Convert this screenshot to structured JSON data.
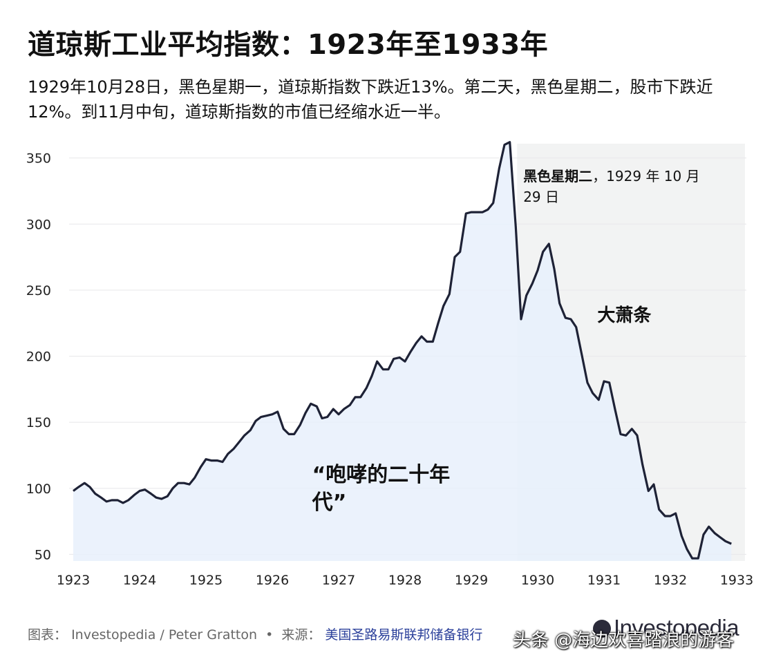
{
  "title": "道琼斯工业平均指数：1923年至1933年",
  "subtitle": "1929年10月28日，黑色星期一，道琼斯指数下跌近13%。第二天，黑色星期二，股市下跌近12%。到11月中旬，道琼斯指数的市值已经缩水近一半。",
  "footer": {
    "chart_label": "图表：",
    "chart_author": "Investopedia / Peter Gratton",
    "bullet": "•",
    "source_label": "来源：",
    "source_name": "美国圣路易斯联邦储备银行"
  },
  "brand": "Investopedia",
  "watermark": "头条 @海边欢喜踏浪的游客",
  "chart_data": {
    "type": "area",
    "title": "道琼斯工业平均指数：1923年至1933年",
    "xlabel": "",
    "ylabel": "",
    "xlim": [
      1923,
      1933
    ],
    "ylim": [
      45,
      365
    ],
    "x_ticks": [
      "1923",
      "1924",
      "1925",
      "1926",
      "1927",
      "1928",
      "1929",
      "1930",
      "1931",
      "1932",
      "1933"
    ],
    "y_ticks": [
      50,
      100,
      150,
      200,
      250,
      300,
      350
    ],
    "grid": true,
    "line_color": "#1e2236",
    "fill_color": "#e8f0fb",
    "shade_color": "#f2f3f3",
    "shaded_region": [
      1929.69,
      1932.0
    ],
    "annotations": [
      {
        "bold": "黑色星期二",
        "text": "，1929 年 10 月",
        "text2": "29 日",
        "x": 1929.7,
        "y": 340
      },
      {
        "text": "大萧条",
        "x": 1930.9,
        "y": 244
      },
      {
        "text": "“咆哮的二十年",
        "text2": "代”",
        "x": 1926.6,
        "y": 103
      }
    ],
    "series": [
      {
        "name": "道琼斯工业平均指数",
        "x": [
          1923.0,
          1923.08,
          1923.17,
          1923.25,
          1923.33,
          1923.42,
          1923.5,
          1923.58,
          1923.67,
          1923.75,
          1923.83,
          1923.92,
          1924.0,
          1924.08,
          1924.17,
          1924.25,
          1924.33,
          1924.42,
          1924.5,
          1924.58,
          1924.67,
          1924.75,
          1924.83,
          1924.92,
          1925.0,
          1925.08,
          1925.17,
          1925.25,
          1925.33,
          1925.42,
          1925.5,
          1925.58,
          1925.67,
          1925.75,
          1925.83,
          1925.92,
          1926.0,
          1926.08,
          1926.17,
          1926.25,
          1926.33,
          1926.42,
          1926.5,
          1926.58,
          1926.67,
          1926.75,
          1926.83,
          1926.92,
          1927.0,
          1927.08,
          1927.17,
          1927.25,
          1927.33,
          1927.42,
          1927.5,
          1927.58,
          1927.67,
          1927.75,
          1927.83,
          1927.92,
          1928.0,
          1928.08,
          1928.17,
          1928.25,
          1928.33,
          1928.42,
          1928.5,
          1928.58,
          1928.67,
          1928.75,
          1928.83,
          1928.92,
          1929.0,
          1929.08,
          1929.17,
          1929.25,
          1929.33,
          1929.42,
          1929.5,
          1929.58,
          1929.67,
          1929.75,
          1929.83,
          1929.92,
          1930.0,
          1930.08,
          1930.17,
          1930.25,
          1930.33,
          1930.42,
          1930.5,
          1930.58,
          1930.67,
          1930.75,
          1930.83,
          1930.92,
          1931.0,
          1931.08,
          1931.17,
          1931.25,
          1931.33,
          1931.42,
          1931.5,
          1931.58,
          1931.67,
          1931.75,
          1931.83,
          1931.92,
          1932.0,
          1932.08,
          1932.17,
          1932.25,
          1932.33,
          1932.42,
          1932.5,
          1932.58,
          1932.67,
          1932.75,
          1932.83,
          1932.92
        ],
        "values": [
          98,
          101,
          104,
          101,
          96,
          93,
          90,
          91,
          91,
          89,
          91,
          95,
          98,
          99,
          96,
          93,
          92,
          94,
          100,
          104,
          104,
          103,
          108,
          116,
          122,
          121,
          121,
          120,
          126,
          130,
          135,
          140,
          144,
          151,
          154,
          155,
          156,
          158,
          145,
          141,
          141,
          148,
          157,
          164,
          162,
          153,
          154,
          160,
          156,
          160,
          163,
          169,
          169,
          176,
          185,
          196,
          190,
          190,
          198,
          199,
          196,
          203,
          210,
          215,
          211,
          211,
          225,
          238,
          247,
          275,
          279,
          308,
          309,
          309,
          309,
          311,
          316,
          342,
          360,
          362,
          298,
          228,
          246,
          255,
          265,
          279,
          285,
          266,
          240,
          229,
          228,
          222,
          200,
          180,
          172,
          167,
          181,
          180,
          159,
          141,
          140,
          145,
          140,
          118,
          98,
          103,
          84,
          79,
          79,
          81,
          64,
          54,
          47,
          47,
          65,
          71,
          66,
          63,
          60,
          58
        ]
      }
    ]
  }
}
